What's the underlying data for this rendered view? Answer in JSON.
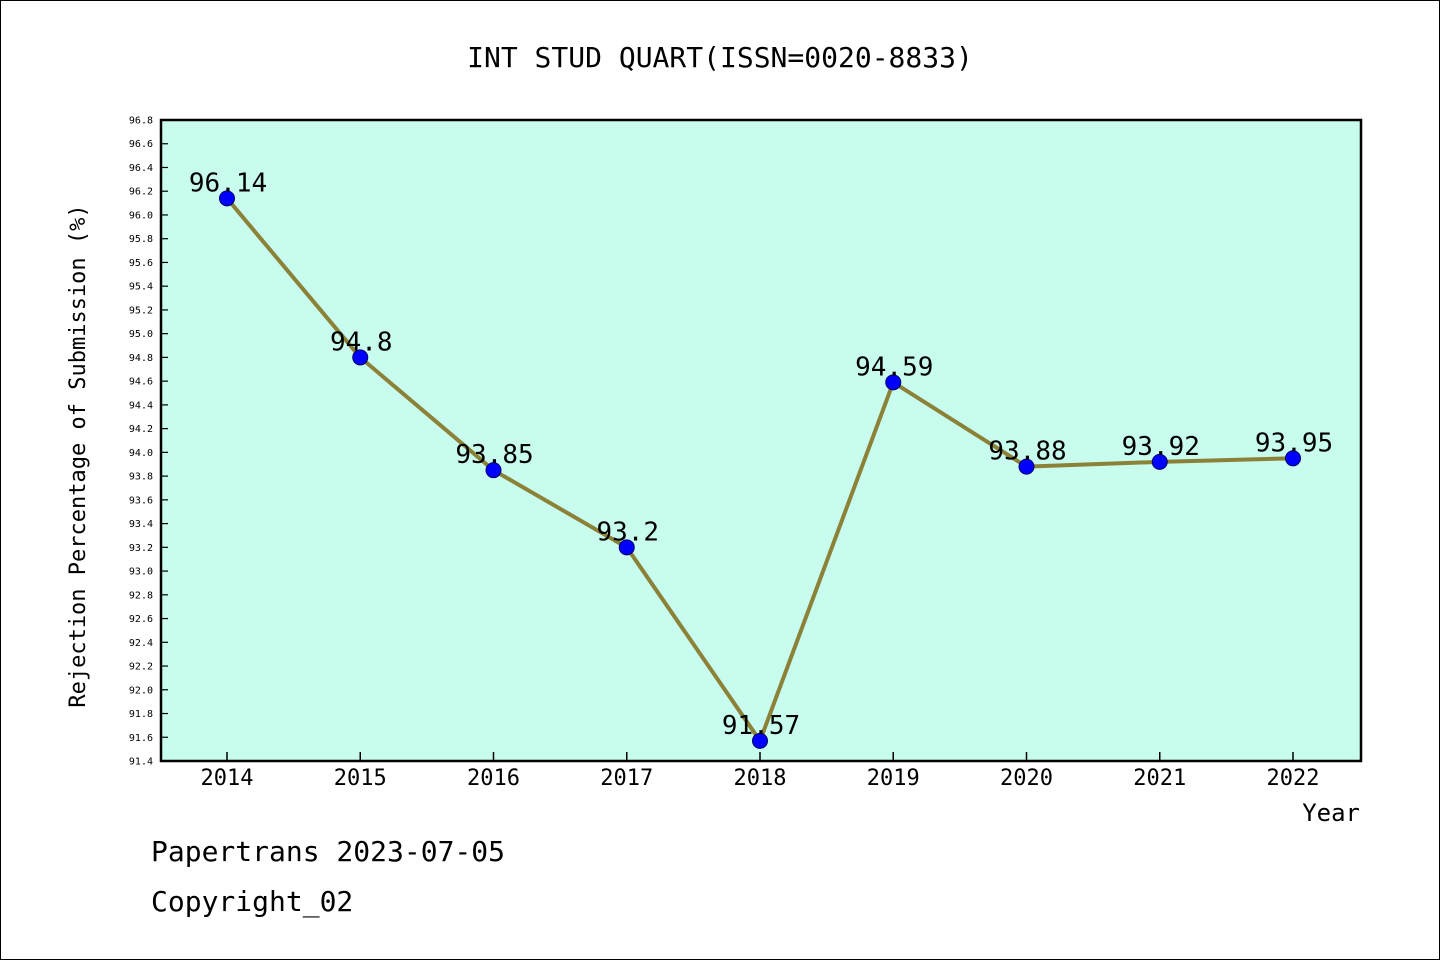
{
  "chart_data": {
    "type": "line",
    "title": "INT STUD QUART(ISSN=0020-8833)",
    "xlabel": "Year",
    "ylabel": "Rejection Percentage of Submission (%)",
    "categories": [
      "2014",
      "2015",
      "2016",
      "2017",
      "2018",
      "2019",
      "2020",
      "2021",
      "2022"
    ],
    "values": [
      96.14,
      94.8,
      93.85,
      93.2,
      91.57,
      94.59,
      93.88,
      93.92,
      93.95
    ],
    "data_labels": [
      "96.14",
      "94.8",
      "93.85",
      "93.2",
      "91.57",
      "94.59",
      "93.88",
      "93.92",
      "93.95"
    ],
    "ylim": [
      91.4,
      96.8
    ],
    "yticks": [
      "91.4",
      "91.6",
      "91.8",
      "92.0",
      "92.2",
      "92.4",
      "92.6",
      "92.8",
      "93.0",
      "93.2",
      "93.4",
      "93.6",
      "93.8",
      "94.0",
      "94.2",
      "94.4",
      "94.6",
      "94.8",
      "95.0",
      "95.2",
      "95.4",
      "95.6",
      "95.8",
      "96.0",
      "96.2",
      "96.4",
      "96.6",
      "96.8"
    ],
    "grid": false,
    "legend": "none",
    "colors": {
      "plot_background": "#c8fcee",
      "line": "#8b8238",
      "marker": "#0000ff"
    }
  },
  "footer": {
    "line1": "Papertrans 2023-07-05",
    "line2": "Copyright_02"
  }
}
